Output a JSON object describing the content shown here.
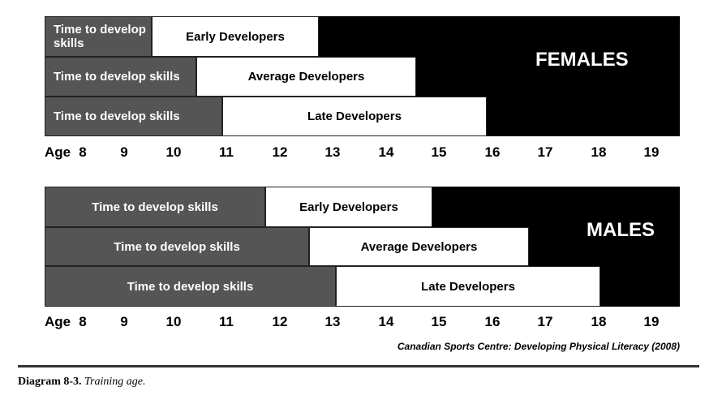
{
  "females": {
    "label": "FEMALES",
    "rows": [
      {
        "skills": "Time to develop skills",
        "developers": "Early Developers"
      },
      {
        "skills": "Time to develop skills",
        "developers": "Average Developers"
      },
      {
        "skills": "Time to develop skills",
        "developers": "Late Developers"
      }
    ]
  },
  "males": {
    "label": "MALES",
    "rows": [
      {
        "skills": "Time to develop skills",
        "developers": "Early Developers"
      },
      {
        "skills": "Time to develop skills",
        "developers": "Average Developers"
      },
      {
        "skills": "Time to develop skills",
        "developers": "Late Developers"
      }
    ]
  },
  "age_label": "Age",
  "ages": [
    "8",
    "9",
    "10",
    "11",
    "12",
    "13",
    "14",
    "15",
    "16",
    "17",
    "18",
    "19"
  ],
  "source": "Canadian Sports Centre: Developing Physical Literacy (2008)",
  "caption": {
    "number": "Diagram 8-3.",
    "text": "Training age."
  }
}
